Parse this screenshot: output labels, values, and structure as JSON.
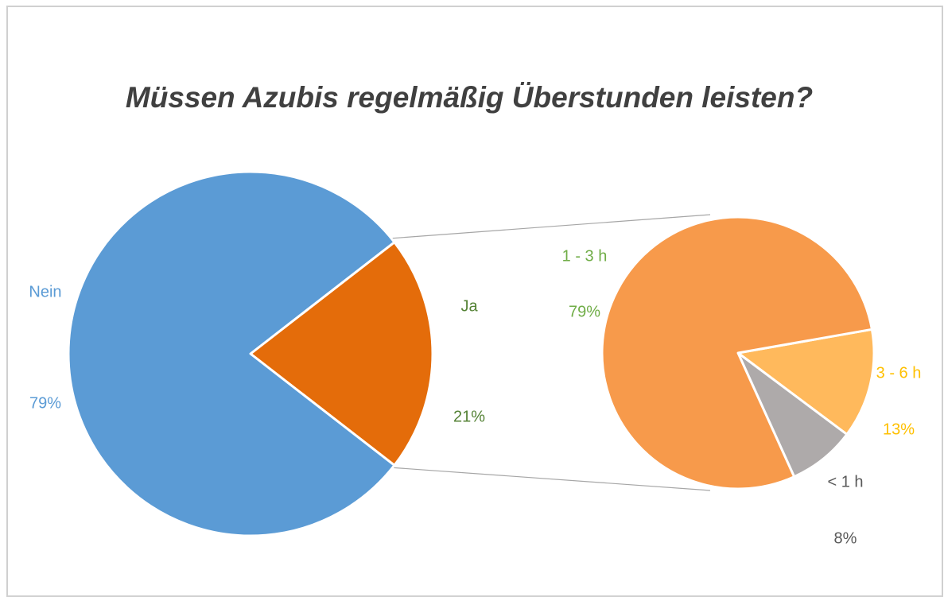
{
  "chart_data": [
    {
      "type": "pie",
      "title": "Müssen Azubis regelmäßig Überstunden leisten?",
      "categories": [
        "Ja",
        "Nein"
      ],
      "values": [
        21,
        79
      ],
      "value_labels": [
        "21%",
        "79%"
      ],
      "colors": [
        "#e46c0a",
        "#5b9bd5"
      ],
      "label_colors": [
        "#548235",
        "#5b9bd5"
      ]
    },
    {
      "type": "pie",
      "categories": [
        "3 - 6 h",
        "< 1 h",
        "1 - 3 h"
      ],
      "values": [
        13,
        8,
        79
      ],
      "value_labels": [
        "13%",
        "8%",
        "79%"
      ],
      "colors": [
        "#ffb95c",
        "#aeaaaa",
        "#f79a4b"
      ],
      "label_colors": [
        "#ffc000",
        "#595959",
        "#70ad47"
      ]
    }
  ]
}
